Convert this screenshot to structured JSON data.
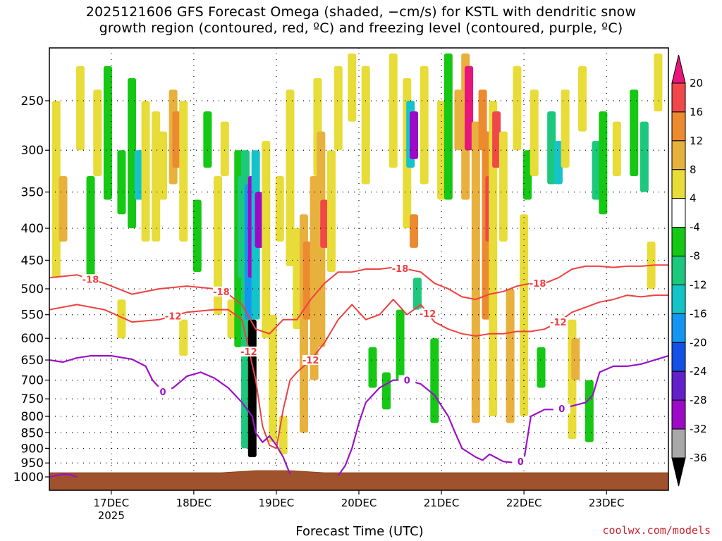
{
  "title_line1": "2025121606 GFS Forecast Omega (shaded, −cm/s) for KSTL with dendritic snow",
  "title_line2": "growth region (contoured, red, ºC) and freezing level (contoured, purple, ºC)",
  "credit": "coolwx.com/models",
  "chart_data": {
    "type": "heatmap",
    "title": "2025121606 GFS Forecast Omega (shaded, −cm/s) for KSTL with dendritic snow growth region (contoured, red, ºC) and freezing level (contoured, purple, ºC)",
    "xlabel": "Forecast Time (UTC)",
    "ylabel": "",
    "x_ticks": [
      {
        "label": "17DEC",
        "sub": "2025",
        "hour": 18
      },
      {
        "label": "18DEC",
        "sub": "",
        "hour": 42
      },
      {
        "label": "19DEC",
        "sub": "",
        "hour": 66
      },
      {
        "label": "20DEC",
        "sub": "",
        "hour": 90
      },
      {
        "label": "21DEC",
        "sub": "",
        "hour": 114
      },
      {
        "label": "22DEC",
        "sub": "",
        "hour": 138
      },
      {
        "label": "23DEC",
        "sub": "",
        "hour": 162
      }
    ],
    "xlim": [
      0,
      180
    ],
    "y_ticks": [
      250,
      300,
      350,
      400,
      450,
      500,
      550,
      600,
      650,
      700,
      750,
      800,
      850,
      900,
      950,
      1000
    ],
    "y_tick_labels": [
      "250",
      "300",
      "350",
      "400",
      "450",
      "500",
      "550",
      "600",
      "650",
      "700",
      "750",
      "800",
      "850",
      "900",
      "950",
      "1000"
    ],
    "ylim": [
      200,
      1020
    ],
    "y_scale": "log-pressure (inverted)",
    "colorbar": {
      "labels": [
        "20",
        "16",
        "12",
        "8",
        "4",
        "-4",
        "-8",
        "-12",
        "-16",
        "-20",
        "-24",
        "-28",
        "-32",
        "-36"
      ],
      "levels": [
        24,
        20,
        16,
        12,
        8,
        4,
        -4,
        -8,
        -12,
        -16,
        -20,
        -24,
        -28,
        -32,
        -36,
        -40
      ],
      "colors": [
        "#e8157d",
        "#f04848",
        "#ec8a30",
        "#e8b03c",
        "#e8dc38",
        "#ffffff",
        "#14c814",
        "#1cc87c",
        "#14c4c8",
        "#1496f0",
        "#1450e6",
        "#6420c8",
        "#9c0ac8",
        "#a8a8a8",
        "#000000"
      ]
    },
    "omega_cells": [
      {
        "t": 2,
        "p1": 250,
        "p2": 480,
        "v": 6
      },
      {
        "t": 4,
        "p1": 330,
        "p2": 420,
        "v": 10
      },
      {
        "t": 9,
        "p1": 220,
        "p2": 300,
        "v": 6
      },
      {
        "t": 12,
        "p1": 330,
        "p2": 480,
        "v": -6
      },
      {
        "t": 14,
        "p1": 240,
        "p2": 330,
        "v": 6
      },
      {
        "t": 17,
        "p1": 220,
        "p2": 360,
        "v": -6
      },
      {
        "t": 21,
        "p1": 300,
        "p2": 380,
        "v": -6
      },
      {
        "t": 21,
        "p1": 520,
        "p2": 600,
        "v": 5
      },
      {
        "t": 24,
        "p1": 230,
        "p2": 400,
        "v": -6
      },
      {
        "t": 26,
        "p1": 300,
        "p2": 360,
        "v": -12
      },
      {
        "t": 28,
        "p1": 250,
        "p2": 420,
        "v": 6
      },
      {
        "t": 31,
        "p1": 260,
        "p2": 420,
        "v": 6
      },
      {
        "t": 33,
        "p1": 280,
        "p2": 360,
        "v": 8
      },
      {
        "t": 36,
        "p1": 240,
        "p2": 340,
        "v": 10
      },
      {
        "t": 37,
        "p1": 260,
        "p2": 320,
        "v": 14
      },
      {
        "t": 39,
        "p1": 250,
        "p2": 420,
        "v": 6
      },
      {
        "t": 39,
        "p1": 560,
        "p2": 640,
        "v": 5
      },
      {
        "t": 43,
        "p1": 360,
        "p2": 470,
        "v": -6
      },
      {
        "t": 46,
        "p1": 260,
        "p2": 320,
        "v": -6
      },
      {
        "t": 49,
        "p1": 330,
        "p2": 550,
        "v": 6
      },
      {
        "t": 51,
        "p1": 270,
        "p2": 330,
        "v": 5
      },
      {
        "t": 53,
        "p1": 520,
        "p2": 600,
        "v": 6
      },
      {
        "t": 55,
        "p1": 300,
        "p2": 620,
        "v": -6
      },
      {
        "t": 56,
        "p1": 330,
        "p2": 480,
        "v": -10
      },
      {
        "t": 57,
        "p1": 300,
        "p2": 900,
        "v": -10
      },
      {
        "t": 58,
        "p1": 340,
        "p2": 560,
        "v": -16
      },
      {
        "t": 59,
        "p1": 330,
        "p2": 480,
        "v": -28
      },
      {
        "t": 59,
        "p1": 560,
        "p2": 930,
        "v": -40
      },
      {
        "t": 60,
        "p1": 300,
        "p2": 560,
        "v": -12
      },
      {
        "t": 61,
        "p1": 350,
        "p2": 430,
        "v": -30
      },
      {
        "t": 63,
        "p1": 290,
        "p2": 600,
        "v": 6
      },
      {
        "t": 65,
        "p1": 550,
        "p2": 880,
        "v": 6
      },
      {
        "t": 67,
        "p1": 330,
        "p2": 420,
        "v": 6
      },
      {
        "t": 68,
        "p1": 800,
        "p2": 920,
        "v": 5
      },
      {
        "t": 70,
        "p1": 240,
        "p2": 460,
        "v": 6
      },
      {
        "t": 72,
        "p1": 400,
        "p2": 580,
        "v": 8
      },
      {
        "t": 74,
        "p1": 380,
        "p2": 850,
        "v": 10
      },
      {
        "t": 75,
        "p1": 420,
        "p2": 560,
        "v": 14
      },
      {
        "t": 77,
        "p1": 330,
        "p2": 700,
        "v": 10
      },
      {
        "t": 78,
        "p1": 230,
        "p2": 330,
        "v": 6
      },
      {
        "t": 79,
        "p1": 280,
        "p2": 620,
        "v": 12
      },
      {
        "t": 80,
        "p1": 360,
        "p2": 430,
        "v": 18
      },
      {
        "t": 82,
        "p1": 300,
        "p2": 470,
        "v": 8
      },
      {
        "t": 84,
        "p1": 220,
        "p2": 300,
        "v": 5
      },
      {
        "t": 88,
        "p1": 210,
        "p2": 270,
        "v": 6
      },
      {
        "t": 92,
        "p1": 220,
        "p2": 340,
        "v": 6
      },
      {
        "t": 94,
        "p1": 620,
        "p2": 720,
        "v": -6
      },
      {
        "t": 98,
        "p1": 680,
        "p2": 780,
        "v": -6
      },
      {
        "t": 100,
        "p1": 210,
        "p2": 320,
        "v": 6
      },
      {
        "t": 102,
        "p1": 540,
        "p2": 700,
        "v": -6
      },
      {
        "t": 104,
        "p1": 230,
        "p2": 400,
        "v": 6
      },
      {
        "t": 105,
        "p1": 250,
        "p2": 320,
        "v": -14
      },
      {
        "t": 106,
        "p1": 260,
        "p2": 310,
        "v": -28
      },
      {
        "t": 106,
        "p1": 380,
        "p2": 430,
        "v": 16
      },
      {
        "t": 107,
        "p1": 480,
        "p2": 540,
        "v": -10
      },
      {
        "t": 109,
        "p1": 220,
        "p2": 340,
        "v": 6
      },
      {
        "t": 112,
        "p1": 600,
        "p2": 820,
        "v": -6
      },
      {
        "t": 114,
        "p1": 250,
        "p2": 360,
        "v": 6
      },
      {
        "t": 116,
        "p1": 210,
        "p2": 360,
        "v": -6
      },
      {
        "t": 119,
        "p1": 240,
        "p2": 300,
        "v": 10
      },
      {
        "t": 121,
        "p1": 210,
        "p2": 360,
        "v": 10
      },
      {
        "t": 122,
        "p1": 220,
        "p2": 300,
        "v": 22
      },
      {
        "t": 124,
        "p1": 270,
        "p2": 820,
        "v": 10
      },
      {
        "t": 126,
        "p1": 240,
        "p2": 300,
        "v": 14
      },
      {
        "t": 127,
        "p1": 280,
        "p2": 560,
        "v": 14
      },
      {
        "t": 128,
        "p1": 330,
        "p2": 420,
        "v": 18
      },
      {
        "t": 129,
        "p1": 250,
        "p2": 800,
        "v": 8
      },
      {
        "t": 130,
        "p1": 260,
        "p2": 320,
        "v": 20
      },
      {
        "t": 132,
        "p1": 280,
        "p2": 420,
        "v": 6
      },
      {
        "t": 134,
        "p1": 500,
        "p2": 820,
        "v": 10
      },
      {
        "t": 136,
        "p1": 220,
        "p2": 300,
        "v": 6
      },
      {
        "t": 138,
        "p1": 380,
        "p2": 800,
        "v": 8
      },
      {
        "t": 139,
        "p1": 300,
        "p2": 360,
        "v": -6
      },
      {
        "t": 141,
        "p1": 240,
        "p2": 330,
        "v": 6
      },
      {
        "t": 143,
        "p1": 620,
        "p2": 720,
        "v": -6
      },
      {
        "t": 146,
        "p1": 260,
        "p2": 340,
        "v": -8
      },
      {
        "t": 148,
        "p1": 290,
        "p2": 340,
        "v": -14
      },
      {
        "t": 150,
        "p1": 240,
        "p2": 320,
        "v": 6
      },
      {
        "t": 152,
        "p1": 560,
        "p2": 870,
        "v": 6
      },
      {
        "t": 153,
        "p1": 600,
        "p2": 700,
        "v": 12
      },
      {
        "t": 155,
        "p1": 220,
        "p2": 280,
        "v": 5
      },
      {
        "t": 157,
        "p1": 700,
        "p2": 880,
        "v": -6
      },
      {
        "t": 159,
        "p1": 290,
        "p2": 360,
        "v": -10
      },
      {
        "t": 161,
        "p1": 260,
        "p2": 380,
        "v": -6
      },
      {
        "t": 165,
        "p1": 270,
        "p2": 330,
        "v": 5
      },
      {
        "t": 170,
        "p1": 240,
        "p2": 330,
        "v": -6
      },
      {
        "t": 173,
        "p1": 270,
        "p2": 350,
        "v": -8
      },
      {
        "t": 175,
        "p1": 420,
        "p2": 500,
        "v": 6
      },
      {
        "t": 177,
        "p1": 210,
        "p2": 260,
        "v": 5
      }
    ],
    "dgz_top_isotherm": {
      "label": "-18",
      "label_hours": [
        12,
        50,
        102,
        142
      ],
      "hours": [
        0,
        8,
        16,
        24,
        32,
        40,
        48,
        52,
        56,
        60,
        64,
        68,
        72,
        76,
        80,
        84,
        88,
        92,
        96,
        100,
        104,
        108,
        112,
        116,
        120,
        124,
        128,
        132,
        136,
        140,
        144,
        148,
        152,
        156,
        160,
        164,
        168,
        172,
        176,
        180
      ],
      "pressure": [
        480,
        475,
        490,
        510,
        500,
        495,
        500,
        510,
        530,
        580,
        590,
        560,
        560,
        520,
        490,
        470,
        470,
        465,
        465,
        462,
        465,
        470,
        490,
        500,
        515,
        520,
        510,
        505,
        495,
        490,
        490,
        480,
        465,
        460,
        460,
        462,
        460,
        460,
        458,
        458
      ]
    },
    "dgz_bottom_isotherm": {
      "label": "-12",
      "label_hours": [
        36,
        58,
        76,
        110,
        148
      ],
      "hours": [
        0,
        8,
        16,
        24,
        32,
        40,
        48,
        52,
        56,
        60,
        62,
        64,
        66,
        68,
        70,
        72,
        76,
        80,
        84,
        88,
        92,
        96,
        100,
        104,
        108,
        112,
        116,
        120,
        124,
        128,
        132,
        136,
        140,
        144,
        148,
        152,
        156,
        160,
        164,
        168,
        172,
        176,
        180
      ],
      "pressure": [
        540,
        530,
        540,
        565,
        560,
        545,
        540,
        540,
        560,
        700,
        830,
        890,
        900,
        780,
        700,
        680,
        650,
        610,
        560,
        530,
        560,
        550,
        520,
        550,
        530,
        565,
        580,
        590,
        595,
        590,
        590,
        585,
        585,
        580,
        565,
        545,
        535,
        525,
        520,
        512,
        515,
        512,
        512
      ]
    },
    "freezing_level_contours": [
      {
        "label": "0",
        "label_hours": [
          33
        ],
        "hours": [
          0,
          4,
          8,
          12,
          18,
          24,
          28,
          30,
          33,
          36,
          40,
          44,
          48,
          52,
          56,
          59,
          60,
          62,
          64,
          66,
          68,
          70
        ],
        "pressure": [
          650,
          655,
          645,
          640,
          640,
          648,
          665,
          700,
          730,
          720,
          690,
          680,
          695,
          720,
          760,
          800,
          850,
          880,
          860,
          890,
          930,
          990
        ]
      },
      {
        "label": "0",
        "label_hours": [
          104,
          137,
          149
        ],
        "hours": [
          84,
          86,
          88,
          90,
          92,
          94,
          96,
          100,
          104,
          108,
          112,
          116,
          118,
          120,
          124,
          126,
          128,
          132,
          136,
          138,
          140,
          144,
          148,
          152,
          156,
          158,
          160,
          164,
          168,
          172,
          176,
          180
        ],
        "pressure": [
          995,
          960,
          900,
          820,
          760,
          740,
          720,
          700,
          700,
          710,
          740,
          800,
          850,
          900,
          930,
          940,
          920,
          945,
          950,
          940,
          800,
          780,
          780,
          770,
          760,
          740,
          680,
          665,
          665,
          660,
          650,
          640
        ]
      },
      {
        "label": "",
        "label_hours": [],
        "hours": [
          0,
          2,
          4,
          6,
          8
        ],
        "pressure": [
          1000,
          995,
          990,
          992,
          1000
        ]
      }
    ],
    "terrain_pressure": 985,
    "grid": true
  }
}
